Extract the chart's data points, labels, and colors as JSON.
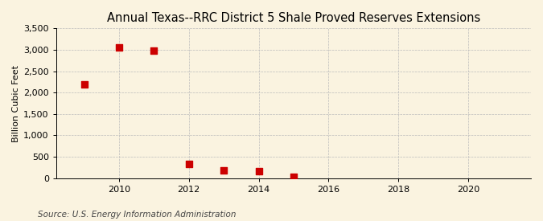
{
  "title": "Annual Texas--RRC District 5 Shale Proved Reserves Extensions",
  "ylabel": "Billion Cubic Feet",
  "source": "Source: U.S. Energy Information Administration",
  "years": [
    2009,
    2010,
    2011,
    2012,
    2013,
    2014,
    2015
  ],
  "values": [
    2200,
    3050,
    2980,
    330,
    175,
    160,
    30
  ],
  "marker_color": "#cc0000",
  "marker_size": 28,
  "background_color": "#faf3e0",
  "grid_color": "#bbbbbb",
  "xlim": [
    2008.2,
    2021.8
  ],
  "ylim": [
    0,
    3500
  ],
  "yticks": [
    0,
    500,
    1000,
    1500,
    2000,
    2500,
    3000,
    3500
  ],
  "xticks": [
    2010,
    2012,
    2014,
    2016,
    2018,
    2020
  ],
  "title_fontsize": 10.5,
  "label_fontsize": 8,
  "tick_fontsize": 8,
  "source_fontsize": 7.5
}
